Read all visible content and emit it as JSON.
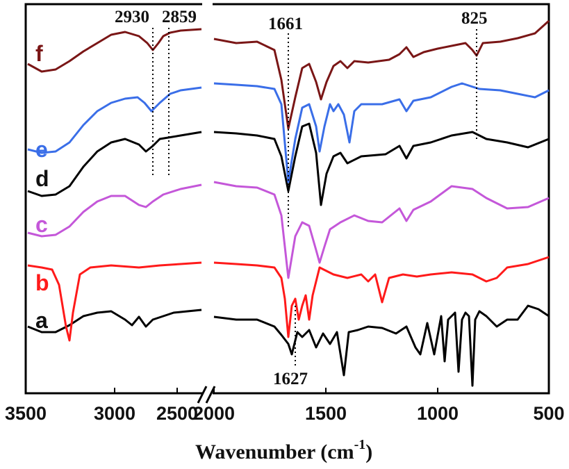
{
  "chart_data": {
    "type": "line",
    "title": "",
    "xlabel": "Wavenumber (cm",
    "xlabel_sup": "-1",
    "xlabel_close": ")",
    "ylabel": "",
    "x_axis": {
      "reversed": true,
      "broken": true,
      "segments": [
        [
          3500,
          2000
        ],
        [
          2000,
          500
        ]
      ]
    },
    "tick_labels": [
      {
        "id": "3500",
        "text": "3500"
      },
      {
        "id": "3000",
        "text": "3000"
      },
      {
        "id": "2500",
        "text": "2500"
      },
      {
        "id": "2000",
        "text": "2000"
      },
      {
        "id": "1500",
        "text": "1500"
      },
      {
        "id": "1000",
        "text": "1000"
      },
      {
        "id": "500",
        "text": "500"
      }
    ],
    "annotations": [
      {
        "text": "2930",
        "x": 2930
      },
      {
        "text": "2859",
        "x": 2859
      },
      {
        "text": "1661",
        "x": 1661
      },
      {
        "text": "825",
        "x": 825
      },
      {
        "text": "1627",
        "x": 1627
      }
    ],
    "series": [
      {
        "name": "a",
        "color": "#000000",
        "offset": 0.0
      },
      {
        "name": "b",
        "color": "#ff1a1a",
        "offset": 0.0
      },
      {
        "name": "c",
        "color": "#c457d9",
        "offset": 0.0
      },
      {
        "name": "d",
        "color": "#000000",
        "offset": 0.0
      },
      {
        "name": "e",
        "color": "#3a6ee8",
        "offset": 0.0
      },
      {
        "name": "f",
        "color": "#7a1616",
        "offset": 0.0
      }
    ]
  }
}
